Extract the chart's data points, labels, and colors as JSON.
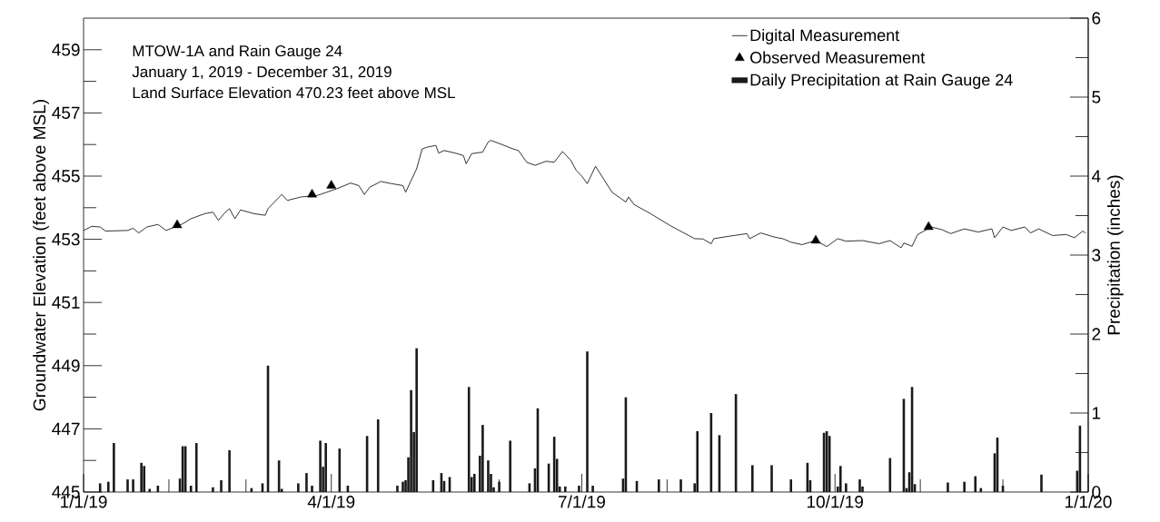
{
  "chart_data": {
    "type": "line",
    "title": "MTOW-1A and Rain Gauge 24",
    "subtitle": "January 1, 2019 - December 31, 2019",
    "annotations": [
      "Land Surface Elevation 470.23 feet above MSL"
    ],
    "ylabel": "Groundwater Elevation (feet above MSL)",
    "y2label": "Precipitation (inches)",
    "legend": "top right",
    "xlim": [
      "2019-01-01",
      "2020-01-01"
    ],
    "xticks": [
      {
        "value": "2019-01-01",
        "label": "1/1/19"
      },
      {
        "value": "2019-02-01",
        "label": null
      },
      {
        "value": "2019-03-01",
        "label": null
      },
      {
        "value": "2019-04-01",
        "label": "4/1/19"
      },
      {
        "value": "2019-05-01",
        "label": null
      },
      {
        "value": "2019-06-01",
        "label": null
      },
      {
        "value": "2019-07-01",
        "label": "7/1/19"
      },
      {
        "value": "2019-08-01",
        "label": null
      },
      {
        "value": "2019-09-01",
        "label": null
      },
      {
        "value": "2019-10-01",
        "label": "10/1/19"
      },
      {
        "value": "2019-11-01",
        "label": null
      },
      {
        "value": "2019-12-01",
        "label": null
      },
      {
        "value": "2020-01-01",
        "label": "1/1/20"
      }
    ],
    "ylim": [
      445,
      460
    ],
    "yticks": [
      445,
      {
        "value": 446,
        "label": null
      },
      447,
      {
        "value": 448,
        "label": null
      },
      449,
      {
        "value": 450,
        "label": null
      },
      451,
      {
        "value": 452,
        "label": null
      },
      453,
      {
        "value": 454,
        "label": null
      },
      455,
      {
        "value": 456,
        "label": null
      },
      457,
      {
        "value": 458,
        "label": null
      },
      459
    ],
    "y2lim": [
      0,
      6
    ],
    "y2ticks": [
      0,
      {
        "value": 0.5,
        "label": null
      },
      1,
      {
        "value": 1.5,
        "label": null
      },
      2,
      {
        "value": 2.5,
        "label": null
      },
      3,
      {
        "value": 3.5,
        "label": null
      },
      4,
      {
        "value": 4.5,
        "label": null
      },
      5,
      {
        "value": 5.5,
        "label": null
      },
      6
    ],
    "series": [
      {
        "name": "Digital Measurement",
        "color": "#000000",
        "x": [
          "2019-01-01",
          "2019-01-04",
          "2019-01-07",
          "2019-01-09",
          "2019-01-17",
          "2019-01-19",
          "2019-01-21",
          "2019-01-24",
          "2019-01-28",
          "2019-01-31",
          "2019-02-06",
          "2019-02-09",
          "2019-02-14",
          "2019-02-17",
          "2019-02-19",
          "2019-02-21",
          "2019-02-23",
          "2019-02-25",
          "2019-02-27",
          "2019-03-04",
          "2019-03-08",
          "2019-03-09",
          "2019-03-14",
          "2019-03-16",
          "2019-03-21",
          "2019-03-27",
          "2019-04-03",
          "2019-04-08",
          "2019-04-11",
          "2019-04-13",
          "2019-04-15",
          "2019-04-19",
          "2019-04-23",
          "2019-04-27",
          "2019-04-28",
          "2019-04-30",
          "2019-05-02",
          "2019-05-04",
          "2019-05-06",
          "2019-05-09",
          "2019-05-10",
          "2019-05-12",
          "2019-05-16",
          "2019-05-19",
          "2019-05-20",
          "2019-05-22",
          "2019-05-26",
          "2019-05-28",
          "2019-05-29",
          "2019-06-02",
          "2019-06-06",
          "2019-06-08",
          "2019-06-11",
          "2019-06-14",
          "2019-06-18",
          "2019-06-21",
          "2019-06-24",
          "2019-06-27",
          "2019-06-29",
          "2019-07-01",
          "2019-07-03",
          "2019-07-06",
          "2019-07-12",
          "2019-07-17",
          "2019-07-18",
          "2019-07-20",
          "2019-07-26",
          "2019-08-02",
          "2019-08-11",
          "2019-08-14",
          "2019-08-17",
          "2019-08-18",
          "2019-08-23",
          "2019-08-30",
          "2019-08-31",
          "2019-09-04",
          "2019-09-09",
          "2019-09-12",
          "2019-09-15",
          "2019-09-19",
          "2019-09-24",
          "2019-09-28",
          "2019-10-02",
          "2019-10-05",
          "2019-10-11",
          "2019-10-17",
          "2019-10-21",
          "2019-10-25",
          "2019-10-26",
          "2019-10-29",
          "2019-10-31",
          "2019-11-05",
          "2019-11-09",
          "2019-11-12",
          "2019-11-17",
          "2019-11-22",
          "2019-11-27",
          "2019-11-28",
          "2019-12-01",
          "2019-12-04",
          "2019-12-09",
          "2019-12-11",
          "2019-12-14",
          "2019-12-19",
          "2019-12-24",
          "2019-12-27",
          "2019-12-30",
          "2019-12-31"
        ],
        "values": [
          453.28,
          453.41,
          453.39,
          453.26,
          453.28,
          453.35,
          453.2,
          453.39,
          453.47,
          453.28,
          453.49,
          453.65,
          453.81,
          453.86,
          453.6,
          453.81,
          453.97,
          453.65,
          453.93,
          453.81,
          453.76,
          453.97,
          454.42,
          454.23,
          454.34,
          454.39,
          454.6,
          454.78,
          454.7,
          454.42,
          454.65,
          454.83,
          454.76,
          454.7,
          454.49,
          454.86,
          455.23,
          455.86,
          455.92,
          455.97,
          455.73,
          455.81,
          455.73,
          455.65,
          455.39,
          455.71,
          455.76,
          456.08,
          456.13,
          456.0,
          455.86,
          455.81,
          455.44,
          455.34,
          455.47,
          455.44,
          455.78,
          455.5,
          455.18,
          455.0,
          454.76,
          455.31,
          454.49,
          454.18,
          454.34,
          454.1,
          453.81,
          453.44,
          453.02,
          453.01,
          452.86,
          453.02,
          453.09,
          453.18,
          453.02,
          453.2,
          453.07,
          453.02,
          452.91,
          452.83,
          452.96,
          452.77,
          453.02,
          452.94,
          452.96,
          452.86,
          452.96,
          452.73,
          452.88,
          452.78,
          453.15,
          453.39,
          453.3,
          453.18,
          453.33,
          453.23,
          453.33,
          453.05,
          453.39,
          453.28,
          453.39,
          453.2,
          453.33,
          453.12,
          453.15,
          453.05,
          453.26,
          453.2
        ]
      },
      {
        "name": "Observed Measurement",
        "type": "scatter",
        "marker": "triangle",
        "color": "#000000",
        "x": [
          "2019-02-04",
          "2019-03-25",
          "2019-04-01",
          "2019-09-24",
          "2019-11-04"
        ],
        "values": [
          453.45,
          454.42,
          454.7,
          452.96,
          453.39
        ]
      },
      {
        "name": "Daily Precipitation at Rain Gauge 24",
        "type": "bar",
        "axis": "y2",
        "color": "#1a1a1a",
        "x": [
          "2019-01-07",
          "2019-01-10",
          "2019-01-12",
          "2019-01-17",
          "2019-01-19",
          "2019-01-22",
          "2019-01-23",
          "2019-01-25",
          "2019-01-28",
          "2019-02-05",
          "2019-02-06",
          "2019-02-07",
          "2019-02-09",
          "2019-02-11",
          "2019-02-17",
          "2019-02-20",
          "2019-02-23",
          "2019-03-03",
          "2019-03-07",
          "2019-03-09",
          "2019-03-13",
          "2019-03-14",
          "2019-03-20",
          "2019-03-23",
          "2019-03-25",
          "2019-03-28",
          "2019-03-29",
          "2019-03-30",
          "2019-04-04",
          "2019-04-07",
          "2019-04-14",
          "2019-04-18",
          "2019-04-25",
          "2019-04-27",
          "2019-04-28",
          "2019-04-29",
          "2019-04-30",
          "2019-05-01",
          "2019-05-02",
          "2019-05-08",
          "2019-05-11",
          "2019-05-12",
          "2019-05-14",
          "2019-05-21",
          "2019-05-22",
          "2019-05-23",
          "2019-05-25",
          "2019-05-26",
          "2019-05-28",
          "2019-05-29",
          "2019-05-30",
          "2019-06-01",
          "2019-06-05",
          "2019-06-12",
          "2019-06-14",
          "2019-06-15",
          "2019-06-19",
          "2019-06-21",
          "2019-06-22",
          "2019-06-23",
          "2019-06-25",
          "2019-06-30",
          "2019-07-03",
          "2019-07-05",
          "2019-07-16",
          "2019-07-17",
          "2019-07-21",
          "2019-07-29",
          "2019-08-06",
          "2019-08-11",
          "2019-08-12",
          "2019-08-17",
          "2019-08-20",
          "2019-08-26",
          "2019-09-01",
          "2019-09-08",
          "2019-09-15",
          "2019-09-21",
          "2019-09-22",
          "2019-09-27",
          "2019-09-28",
          "2019-09-29",
          "2019-10-02",
          "2019-10-03",
          "2019-10-05",
          "2019-10-10",
          "2019-10-11",
          "2019-10-21",
          "2019-10-26",
          "2019-10-27",
          "2019-10-28",
          "2019-10-29",
          "2019-10-30",
          "2019-11-11",
          "2019-11-17",
          "2019-11-21",
          "2019-11-23",
          "2019-11-28",
          "2019-11-29",
          "2019-12-01",
          "2019-12-15",
          "2019-12-28",
          "2019-12-29"
        ],
        "values": [
          0.11,
          0.13,
          0.62,
          0.16,
          0.16,
          0.37,
          0.33,
          0.04,
          0.08,
          0.17,
          0.58,
          0.58,
          0.08,
          0.62,
          0.06,
          0.15,
          0.53,
          0.05,
          0.11,
          1.6,
          0.4,
          0.04,
          0.11,
          0.24,
          0.08,
          0.65,
          0.32,
          0.62,
          0.55,
          0.08,
          0.71,
          0.92,
          0.08,
          0.13,
          0.15,
          0.44,
          1.29,
          0.76,
          1.82,
          0.15,
          0.24,
          0.14,
          0.19,
          1.33,
          0.19,
          0.23,
          0.46,
          0.85,
          0.4,
          0.23,
          0.06,
          0.13,
          0.65,
          0.11,
          0.3,
          1.06,
          0.36,
          0.7,
          0.42,
          0.07,
          0.07,
          0.08,
          1.78,
          0.08,
          0.17,
          1.2,
          0.14,
          0.16,
          0.16,
          0.11,
          0.77,
          1.0,
          0.72,
          1.24,
          0.34,
          0.34,
          0.16,
          0.37,
          0.15,
          0.75,
          0.77,
          0.71,
          0.07,
          0.33,
          0.11,
          0.16,
          0.07,
          0.43,
          1.18,
          0.05,
          0.25,
          1.33,
          0.1,
          0.12,
          0.13,
          0.2,
          0.05,
          0.49,
          0.69,
          0.08,
          0.22,
          0.27,
          0.84
        ]
      }
    ]
  }
}
